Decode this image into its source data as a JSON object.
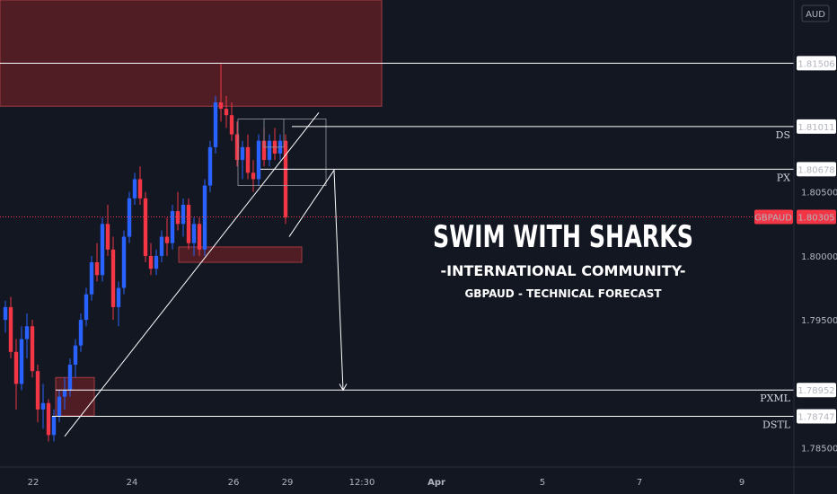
{
  "chart_data": {
    "type": "candlestick",
    "symbol": "GBPAUD",
    "currency_label": "AUD",
    "y_range": [
      1.7835,
      1.82
    ],
    "y_ticks": [
      {
        "value": 1.805,
        "label": "1.80500"
      },
      {
        "value": 1.8,
        "label": "1.80000"
      },
      {
        "value": 1.795,
        "label": "1.79500"
      },
      {
        "value": 1.785,
        "label": "1.78500"
      }
    ],
    "x_ticks": [
      "22",
      "24",
      "26",
      "29",
      "12:30",
      "Apr",
      "5",
      "7",
      "9"
    ],
    "last_price": {
      "symbol": "GBPAUD",
      "value": 1.80305,
      "label": "1.80305"
    },
    "levels": [
      {
        "value": 1.81506,
        "label": "1.81506",
        "tag": ""
      },
      {
        "value": 1.81011,
        "label": "1.81011",
        "tag": "DS"
      },
      {
        "value": 1.80678,
        "label": "1.80678",
        "tag": "PX"
      },
      {
        "value": 1.78952,
        "label": "1.78952",
        "tag": "PXML"
      },
      {
        "value": 1.78747,
        "label": "1.78747",
        "tag": "DSTL"
      }
    ],
    "zones": [
      {
        "label": "supply-zone",
        "y_top": 1.82,
        "y_bottom": 1.8117
      },
      {
        "label": "demand-zone-mid",
        "y_top": 1.8007,
        "y_bottom": 1.7995
      },
      {
        "label": "demand-zone-low",
        "y_top": 1.7905,
        "y_bottom": 1.7875
      }
    ],
    "candles": [
      [
        1.795,
        1.7965,
        1.794,
        1.796
      ],
      [
        1.796,
        1.7968,
        1.792,
        1.7925
      ],
      [
        1.7925,
        1.7935,
        1.788,
        1.79
      ],
      [
        1.79,
        1.7945,
        1.7895,
        1.7935
      ],
      [
        1.7935,
        1.7955,
        1.792,
        1.7945
      ],
      [
        1.7945,
        1.795,
        1.7905,
        1.791
      ],
      [
        1.791,
        1.7915,
        1.787,
        1.788
      ],
      [
        1.788,
        1.79,
        1.7865,
        1.7885
      ],
      [
        1.7885,
        1.7888,
        1.7855,
        1.786
      ],
      [
        1.786,
        1.788,
        1.7855,
        1.7875
      ],
      [
        1.7875,
        1.7895,
        1.787,
        1.789
      ],
      [
        1.789,
        1.7905,
        1.788,
        1.7895
      ],
      [
        1.7895,
        1.792,
        1.789,
        1.7915
      ],
      [
        1.7915,
        1.7935,
        1.7905,
        1.793
      ],
      [
        1.793,
        1.7955,
        1.7925,
        1.795
      ],
      [
        1.795,
        1.7975,
        1.7945,
        1.797
      ],
      [
        1.797,
        1.8,
        1.7965,
        1.7995
      ],
      [
        1.7995,
        1.801,
        1.798,
        1.7985
      ],
      [
        1.7985,
        1.803,
        1.798,
        1.8025
      ],
      [
        1.8025,
        1.804,
        1.8,
        1.8005
      ],
      [
        1.8005,
        1.8015,
        1.795,
        1.796
      ],
      [
        1.796,
        1.798,
        1.7945,
        1.7975
      ],
      [
        1.7975,
        1.802,
        1.797,
        1.8015
      ],
      [
        1.8015,
        1.805,
        1.801,
        1.8045
      ],
      [
        1.8045,
        1.8065,
        1.804,
        1.806
      ],
      [
        1.806,
        1.807,
        1.804,
        1.8045
      ],
      [
        1.8045,
        1.805,
        1.7995,
        1.8
      ],
      [
        1.8,
        1.801,
        1.7985,
        1.799
      ],
      [
        1.799,
        1.8005,
        1.7985,
        1.8
      ],
      [
        1.8,
        1.802,
        1.7995,
        1.8015
      ],
      [
        1.8015,
        1.803,
        1.8,
        1.801
      ],
      [
        1.801,
        1.804,
        1.8005,
        1.8035
      ],
      [
        1.8035,
        1.805,
        1.802,
        1.8025
      ],
      [
        1.8025,
        1.8045,
        1.8015,
        1.804
      ],
      [
        1.804,
        1.8045,
        1.8005,
        1.801
      ],
      [
        1.801,
        1.803,
        1.8,
        1.8025
      ],
      [
        1.8025,
        1.803,
        1.8,
        1.8005
      ],
      [
        1.8005,
        1.806,
        1.8,
        1.8055
      ],
      [
        1.8055,
        1.809,
        1.805,
        1.8085
      ],
      [
        1.8085,
        1.8125,
        1.808,
        1.812
      ],
      [
        1.812,
        1.815,
        1.8105,
        1.8115
      ],
      [
        1.8115,
        1.8125,
        1.81,
        1.811
      ],
      [
        1.811,
        1.812,
        1.809,
        1.8095
      ],
      [
        1.8095,
        1.8105,
        1.807,
        1.8075
      ],
      [
        1.8075,
        1.809,
        1.806,
        1.8085
      ],
      [
        1.8085,
        1.8095,
        1.806,
        1.8065
      ],
      [
        1.8065,
        1.8075,
        1.805,
        1.806
      ],
      [
        1.806,
        1.8095,
        1.8055,
        1.809
      ],
      [
        1.809,
        1.81,
        1.807,
        1.8075
      ],
      [
        1.8075,
        1.8095,
        1.807,
        1.809
      ],
      [
        1.809,
        1.81,
        1.8075,
        1.808
      ],
      [
        1.808,
        1.8095,
        1.8075,
        1.809
      ],
      [
        1.809,
        1.8095,
        1.8025,
        1.803
      ]
    ]
  },
  "overlay": {
    "title": "SWIM WITH SHARKS",
    "subtitle": "-INTERNATIONAL COMMUNITY-",
    "caption": "GBPAUD - TECHNICAL FORECAST"
  },
  "colors": {
    "background": "#131722",
    "up": "#2962ff",
    "down": "#f23645",
    "zone_fill": "#5c1f26",
    "zone_stroke": "#a33b42",
    "level_line": "#ffffff",
    "last_price_badge": "#f23645"
  }
}
